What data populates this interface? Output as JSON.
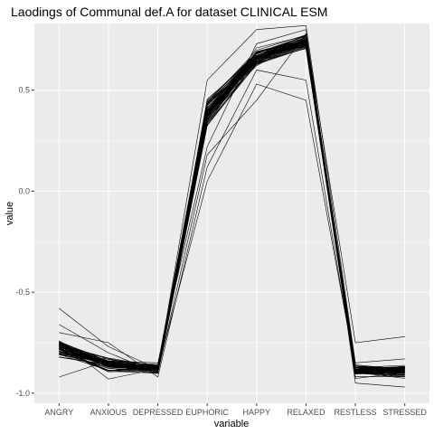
{
  "chart_data": {
    "type": "line",
    "title": "Laodings of Communal def.A for dataset CLINICAL ESM",
    "xlabel": "variable",
    "ylabel": "value",
    "categories": [
      "ANGRY",
      "ANXIOUS",
      "DEPRESSED",
      "EUPHORIC",
      "HAPPY",
      "RELAXED",
      "RESTLESS",
      "STRESSED"
    ],
    "ylim": [
      -1.05,
      0.83
    ],
    "yticks": [
      -1.0,
      -0.5,
      0.0,
      0.5
    ],
    "ytick_labels": [
      "-1.0",
      "-0.5",
      "0.0",
      "0.5"
    ],
    "grid": true,
    "background": "#ebebeb",
    "gridline_color": "#ffffff",
    "line_color": "#000000",
    "series_count": 60,
    "series_mean": [
      -0.78,
      -0.86,
      -0.88,
      0.38,
      0.66,
      0.74,
      -0.89,
      -0.89
    ],
    "series_spread": [
      0.06,
      0.04,
      0.03,
      0.09,
      0.05,
      0.04,
      0.04,
      0.04
    ],
    "outlier_series": [
      [
        -0.58,
        -0.77,
        -0.88,
        0.05,
        0.53,
        0.45,
        -0.88,
        -0.88
      ],
      [
        -0.66,
        -0.8,
        -0.9,
        0.18,
        0.45,
        0.78,
        -0.75,
        -0.72
      ],
      [
        -0.92,
        -0.84,
        -0.85,
        0.22,
        0.73,
        0.8,
        -0.95,
        -0.97
      ],
      [
        -0.74,
        -0.93,
        -0.88,
        0.55,
        0.8,
        0.82,
        -0.85,
        -0.83
      ],
      [
        -0.7,
        -0.75,
        -0.92,
        0.12,
        0.6,
        0.55,
        -0.9,
        -0.92
      ]
    ]
  }
}
